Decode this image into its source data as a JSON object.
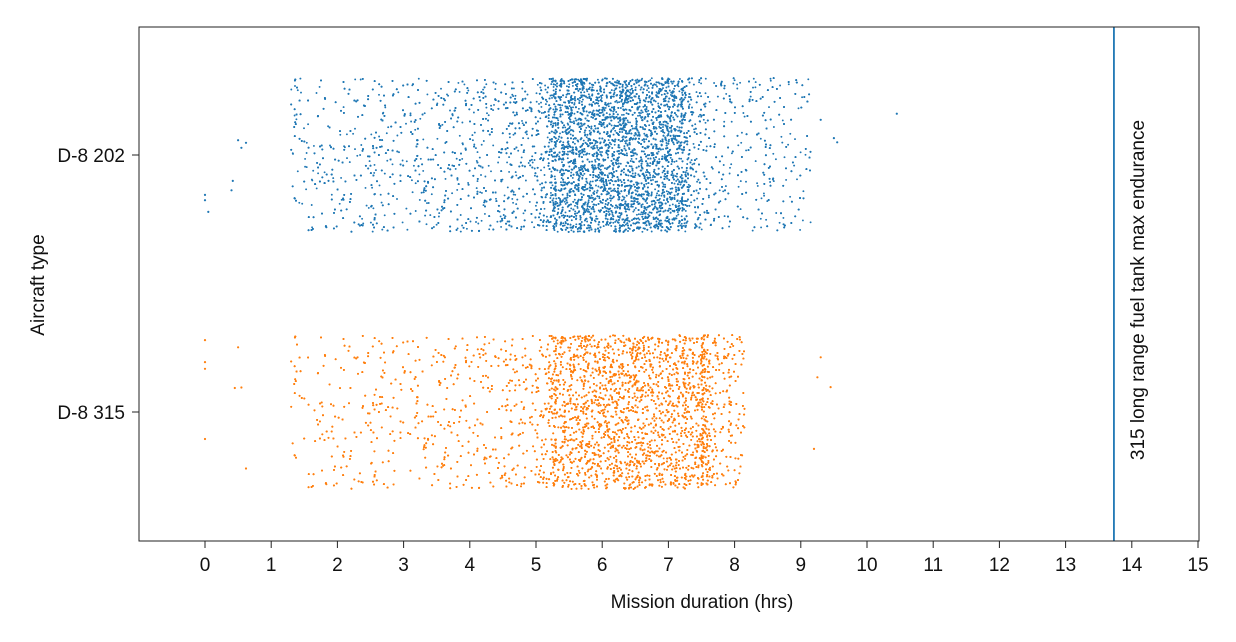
{
  "chart_data": {
    "type": "scatter",
    "title": "",
    "xlabel": "Mission duration (hrs)",
    "ylabel": "Aircraft type",
    "xlim": [
      -0.98,
      15
    ],
    "xticks": [
      0,
      1,
      2,
      3,
      4,
      5,
      6,
      7,
      8,
      9,
      10,
      11,
      12,
      13,
      14,
      15
    ],
    "categories": [
      "D-8 202",
      "D-8 315"
    ],
    "grid": false,
    "legend": "none",
    "reference_line": {
      "x": 13.73,
      "label": "315 long range fuel tank max endurance",
      "color": "#1f77b4"
    },
    "series": [
      {
        "category": "D-8 202",
        "color": "#1f77b4",
        "dense_range": [
          5.3,
          7.2
        ],
        "min": 0.0,
        "max": 10.45,
        "outliers": [
          0.0,
          0.05,
          0.0,
          0.4,
          0.42,
          0.5,
          0.55,
          0.62,
          9.3,
          9.5,
          9.55,
          10.45
        ]
      },
      {
        "category": "D-8 315",
        "color": "#ff7f0e",
        "dense_range": [
          5.3,
          7.5
        ],
        "min": 0.0,
        "max": 9.45,
        "outliers": [
          0.0,
          0.0,
          0.0,
          0.0,
          0.45,
          0.5,
          0.55,
          0.62,
          9.2,
          9.25,
          9.3,
          9.45
        ]
      }
    ]
  }
}
